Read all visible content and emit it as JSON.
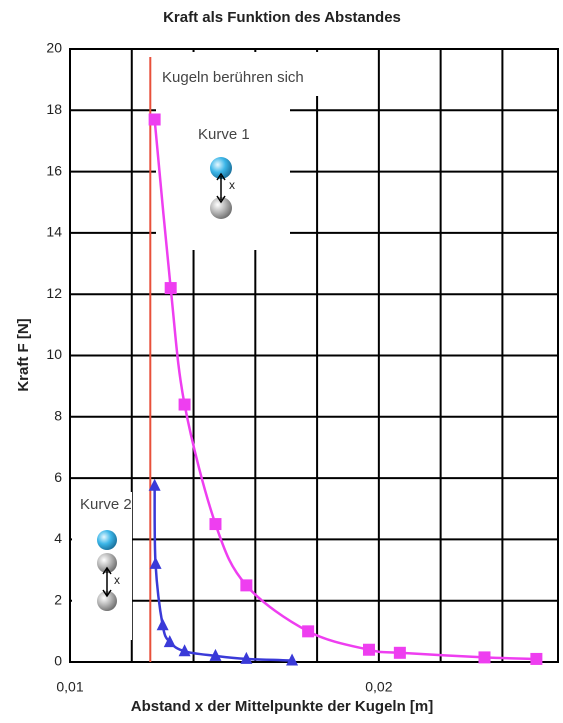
{
  "chart_data": {
    "type": "line",
    "title": "Kraft als Funktion des Abstandes",
    "x_label": "Abstand x der Mittelpunkte der Kugeln  [m]",
    "y_label": "Kraft F  [N]",
    "xlim": [
      0.01,
      0.0258
    ],
    "ylim": [
      0,
      20
    ],
    "xticks": [
      {
        "value": 0.01,
        "label": "0,01"
      },
      {
        "value": 0.02,
        "label": "0,02"
      }
    ],
    "xgrid": [
      0.012,
      0.014,
      0.016,
      0.018,
      0.022,
      0.024
    ],
    "yticks": [
      0,
      2,
      4,
      6,
      8,
      10,
      12,
      14,
      16,
      18,
      20
    ],
    "grid": true,
    "contact_line": {
      "x": 0.0126,
      "label": "Kugeln berühren sich",
      "color": "#e8503a"
    },
    "distance_label": "x",
    "series": [
      {
        "name": "Kurve 1",
        "color": "#ee3ef0",
        "marker": "square",
        "x": [
          0.01274,
          0.01326,
          0.01371,
          0.01471,
          0.01571,
          0.01771,
          0.01968,
          0.02068,
          0.02342,
          0.0251
        ],
        "values": [
          17.7,
          12.2,
          8.4,
          4.5,
          2.5,
          1.0,
          0.4,
          0.3,
          0.15,
          0.1
        ]
      },
      {
        "name": "Kurve 2",
        "color": "#3a3ad8",
        "marker": "triangle",
        "x": [
          0.01274,
          0.01277,
          0.013,
          0.01323,
          0.01371,
          0.01471,
          0.01571,
          0.01719
        ],
        "values": [
          5.75,
          3.2,
          1.2,
          0.65,
          0.35,
          0.2,
          0.1,
          0.05
        ]
      }
    ]
  }
}
